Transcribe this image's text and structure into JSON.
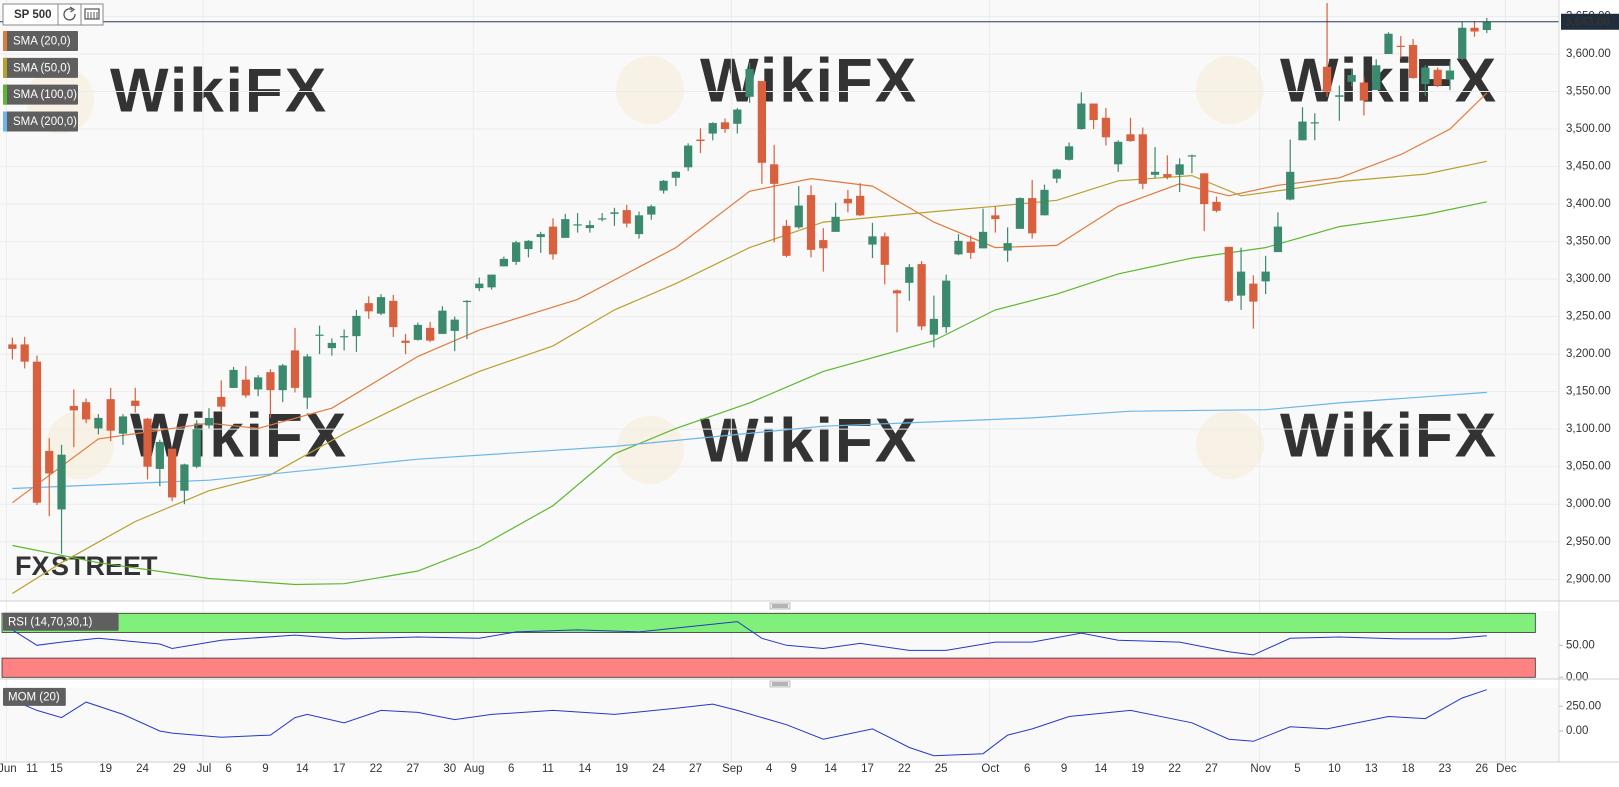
{
  "chart_data": [
    {
      "type": "candlestick",
      "title": "SP 500",
      "categories": [
        "Jun",
        null,
        "11",
        null,
        "15",
        null,
        null,
        null,
        "19",
        null,
        null,
        "24",
        null,
        null,
        "29",
        null,
        "Jul",
        null,
        "6",
        null,
        null,
        "9",
        null,
        null,
        "14",
        null,
        null,
        "17",
        null,
        null,
        "22",
        null,
        null,
        "27",
        null,
        null,
        "30",
        null,
        "Aug",
        null,
        null,
        "6",
        null,
        null,
        "11",
        null,
        null,
        "14",
        null,
        null,
        "19",
        null,
        null,
        "24",
        null,
        null,
        "27",
        null,
        null,
        "Sep",
        null,
        null,
        "4",
        null,
        "9",
        null,
        null,
        "14",
        null,
        null,
        "17",
        null,
        null,
        "22",
        null,
        null,
        "25",
        null,
        null,
        null,
        "Oct",
        null,
        null,
        "6",
        null,
        null,
        "9",
        null,
        null,
        "14",
        null,
        null,
        "19",
        null,
        null,
        "22",
        null,
        null,
        "27",
        null,
        null,
        null,
        "Nov",
        null,
        null,
        "5",
        null,
        null,
        "10",
        null,
        null,
        "13",
        null,
        null,
        "18",
        null,
        null,
        "23",
        null,
        null,
        "26",
        null,
        "Dec"
      ],
      "open": [
        3213,
        3213,
        3190,
        3071,
        2993,
        3131,
        3136,
        3101,
        3140,
        3094,
        3138,
        3114,
        3047,
        3074,
        3018,
        3050,
        3105,
        3143,
        3155,
        3166,
        3153,
        3176,
        3152,
        3205,
        3142,
        3225,
        3208,
        3224,
        3224,
        3268,
        3254,
        3271,
        3218,
        3219,
        3235,
        3227,
        3231,
        3270,
        3288,
        3289,
        3317,
        3323,
        3340,
        3356,
        3370,
        3355,
        3372,
        3368,
        3380,
        3387,
        3392,
        3360,
        3386,
        3418,
        3435,
        3449,
        3486,
        3494,
        3509,
        3507,
        3543,
        3564,
        3453,
        3371,
        3369,
        3412,
        3352,
        3363,
        3407,
        3411,
        3346,
        3357,
        3285,
        3295,
        3320,
        3226,
        3236,
        3333,
        3350,
        3341,
        3385,
        3338,
        3367,
        3408,
        3385,
        3434,
        3459,
        3500,
        3534,
        3515,
        3453,
        3493,
        3493,
        3439,
        3440,
        3439,
        3464,
        3441,
        3403,
        3343,
        3278,
        3294,
        3297,
        3336,
        3406,
        3485,
        3508,
        3583,
        3543,
        3563,
        3562,
        3552,
        3600,
        3611,
        3612,
        3560,
        3579,
        3566,
        3594,
        3635,
        3632,
        null,
        null
      ],
      "high": [
        3222,
        3223,
        3198,
        3088,
        3079,
        3153,
        3141,
        3120,
        3155,
        3120,
        3155,
        3115,
        3086,
        3074,
        3054,
        3112,
        3128,
        3165,
        3183,
        3184,
        3172,
        3180,
        3187,
        3235,
        3200,
        3238,
        3221,
        3233,
        3259,
        3277,
        3280,
        3279,
        3227,
        3242,
        3243,
        3264,
        3250,
        3272,
        3302,
        3306,
        3330,
        3351,
        3352,
        3363,
        3381,
        3387,
        3388,
        3378,
        3388,
        3395,
        3399,
        3390,
        3399,
        3432,
        3444,
        3481,
        3501,
        3509,
        3514,
        3528,
        3588,
        3564,
        3479,
        3379,
        3424,
        3425,
        3368,
        3402,
        3419,
        3428,
        3375,
        3362,
        3286,
        3320,
        3324,
        3278,
        3306,
        3360,
        3358,
        3394,
        3397,
        3369,
        3409,
        3432,
        3426,
        3447,
        3482,
        3549,
        3534,
        3528,
        3485,
        3515,
        3502,
        3476,
        3465,
        3461,
        3466,
        3441,
        3410,
        3343,
        3342,
        3305,
        3331,
        3389,
        3486,
        3529,
        3521,
        3668,
        3558,
        3581,
        3569,
        3593,
        3629,
        3624,
        3620,
        3585,
        3582,
        3590,
        3643,
        3644,
        3648,
        null,
        null
      ],
      "low": [
        3193,
        3181,
        2999,
        2984,
        2934,
        3076,
        3108,
        3093,
        3084,
        3079,
        3122,
        3033,
        3024,
        3004,
        3000,
        3048,
        3101,
        3125,
        3155,
        3142,
        3144,
        3115,
        3136,
        3149,
        3127,
        3200,
        3198,
        3205,
        3203,
        3247,
        3252,
        3223,
        3200,
        3218,
        3216,
        3227,
        3204,
        3220,
        3284,
        3286,
        3317,
        3319,
        3329,
        3335,
        3326,
        3355,
        3362,
        3362,
        3377,
        3371,
        3369,
        3354,
        3379,
        3414,
        3424,
        3444,
        3468,
        3485,
        3495,
        3494,
        3535,
        3427,
        3349,
        3329,
        3367,
        3329,
        3310,
        3363,
        3389,
        3384,
        3328,
        3293,
        3229,
        3271,
        3232,
        3209,
        3228,
        3332,
        3327,
        3341,
        3362,
        3323,
        3367,
        3354,
        3385,
        3428,
        3458,
        3499,
        3500,
        3478,
        3443,
        3483,
        3420,
        3435,
        3433,
        3416,
        3441,
        3364,
        3389,
        3269,
        3259,
        3234,
        3280,
        3336,
        3405,
        3485,
        3485,
        3543,
        3511,
        3557,
        3518,
        3552,
        3600,
        3594,
        3567,
        3544,
        3556,
        3552,
        3592,
        3623,
        3628,
        null,
        null
      ],
      "close": [
        3207,
        3190,
        3002,
        3041,
        3066,
        3125,
        3113,
        3115,
        3098,
        3117,
        3131,
        3050,
        3083,
        3009,
        3053,
        3100,
        3115,
        3130,
        3179,
        3145,
        3169,
        3152,
        3185,
        3155,
        3197,
        3226,
        3215,
        3224,
        3251,
        3257,
        3276,
        3236,
        3215,
        3239,
        3218,
        3258,
        3246,
        3271,
        3294,
        3306,
        3327,
        3349,
        3351,
        3360,
        3333,
        3380,
        3373,
        3372,
        3381,
        3389,
        3374,
        3385,
        3397,
        3431,
        3443,
        3478,
        3484,
        3508,
        3500,
        3526,
        3580,
        3455,
        3427,
        3331,
        3398,
        3339,
        3341,
        3383,
        3401,
        3385,
        3357,
        3319,
        3281,
        3316,
        3237,
        3247,
        3298,
        3351,
        3335,
        3363,
        3380,
        3348,
        3408,
        3361,
        3419,
        3446,
        3477,
        3534,
        3512,
        3489,
        3483,
        3484,
        3427,
        3443,
        3436,
        3453,
        3465,
        3400,
        3391,
        3271,
        3310,
        3270,
        3310,
        3370,
        3443,
        3510,
        3509,
        3550,
        3545,
        3572,
        3538,
        3585,
        3627,
        3610,
        3568,
        3582,
        3558,
        3578,
        3635,
        3630,
        3643,
        null,
        null
      ],
      "up_color": "#3b8a6d",
      "down_color": "#d9603f",
      "ylim": [
        2871,
        3672
      ],
      "yticks": [
        {
          "value": 2900,
          "label": "2,900.00"
        },
        {
          "value": 2950,
          "label": "2,950.00"
        },
        {
          "value": 3000,
          "label": "3,000.00"
        },
        {
          "value": 3050,
          "label": "3,050.00"
        },
        {
          "value": 3100,
          "label": "3,100.00"
        },
        {
          "value": 3150,
          "label": "3,150.00"
        },
        {
          "value": 3200,
          "label": "3,200.00"
        },
        {
          "value": 3250,
          "label": "3,250.00"
        },
        {
          "value": 3300,
          "label": "3,300.00"
        },
        {
          "value": 3350,
          "label": "3,350.00"
        },
        {
          "value": 3400,
          "label": "3,400.00"
        },
        {
          "value": 3450,
          "label": "3,450.00"
        },
        {
          "value": 3500,
          "label": "3,500.00"
        },
        {
          "value": 3550,
          "label": "3,550.00"
        },
        {
          "value": 3600,
          "label": "3,600.00"
        },
        {
          "value": 3650,
          "label": "3,650.00"
        }
      ],
      "last_price": {
        "value": 3643,
        "label": "3,643.00"
      },
      "grid": true,
      "overlays": [
        {
          "name": "SMA (20,0)",
          "color": "#e07b3c",
          "x": [
            0,
            7,
            16,
            20,
            26,
            33,
            38,
            46,
            54,
            60,
            65,
            70,
            75,
            80,
            85,
            90,
            95,
            99,
            103,
            108,
            113,
            117,
            120
          ],
          "values": [
            3002,
            3087,
            3108,
            3101,
            3128,
            3197,
            3232,
            3273,
            3342,
            3417,
            3434,
            3424,
            3376,
            3342,
            3345,
            3397,
            3427,
            3411,
            3425,
            3435,
            3466,
            3500,
            3548
          ]
        },
        {
          "name": "SMA (50,0)",
          "color": "#b8a030",
          "x": [
            0,
            4,
            10,
            16,
            21,
            27,
            33,
            38,
            44,
            49,
            54,
            60,
            66,
            75,
            80,
            85,
            90,
            96,
            100,
            104,
            108,
            115,
            120
          ],
          "values": [
            2881,
            2922,
            2977,
            3018,
            3039,
            3094,
            3142,
            3177,
            3211,
            3259,
            3294,
            3342,
            3376,
            3390,
            3397,
            3405,
            3431,
            3438,
            3411,
            3420,
            3430,
            3440,
            3457
          ]
        },
        {
          "name": "SMA (100,0)",
          "color": "#5cb830",
          "x": [
            0,
            7,
            16,
            23,
            27,
            33,
            38,
            44,
            49,
            54,
            60,
            66,
            75,
            80,
            85,
            90,
            96,
            102,
            108,
            115,
            120
          ],
          "values": [
            2945,
            2922,
            2901,
            2893,
            2894,
            2911,
            2943,
            2998,
            3067,
            3101,
            3135,
            3177,
            3218,
            3259,
            3280,
            3307,
            3328,
            3342,
            3370,
            3386,
            3403
          ]
        },
        {
          "name": "SMA (200,0)",
          "color": "#6bb6ea",
          "x": [
            0,
            16,
            33,
            49,
            66,
            83,
            91,
            102,
            108,
            120
          ],
          "values": [
            3021,
            3032,
            3060,
            3077,
            3104,
            3115,
            3124,
            3126,
            3135,
            3149
          ]
        }
      ]
    },
    {
      "type": "line",
      "title": "RSI (14,70,30,1)",
      "color": "#2438c8",
      "x": [
        0,
        2,
        4,
        7,
        12,
        13,
        17,
        23,
        27,
        33,
        38,
        41,
        46,
        51,
        56,
        59,
        61,
        63,
        66,
        69,
        73,
        76,
        80,
        83,
        87,
        90,
        95,
        99,
        101,
        104,
        108,
        113,
        117,
        120
      ],
      "values": [
        74,
        50,
        55,
        61,
        52,
        45,
        58,
        66,
        60,
        63,
        61,
        71,
        74,
        71,
        81,
        87,
        61,
        50,
        45,
        53,
        42,
        42,
        55,
        55,
        69,
        58,
        55,
        40,
        35,
        61,
        63,
        60,
        60,
        65
      ],
      "ylim": [
        0,
        100
      ],
      "yticks": [
        {
          "value": 0,
          "label": "0.00"
        },
        {
          "value": 50,
          "label": "50.00"
        }
      ],
      "bands": [
        {
          "from": 70,
          "to": 100,
          "color": "#80f07a"
        },
        {
          "from": 0,
          "to": 30,
          "color": "#ff8282"
        }
      ]
    },
    {
      "type": "line",
      "title": "MOM (20)",
      "color": "#2438c8",
      "x": [
        0,
        2,
        4,
        6,
        9,
        12,
        13,
        17,
        21,
        23,
        24,
        27,
        30,
        33,
        36,
        39,
        44,
        49,
        54,
        57,
        59,
        63,
        66,
        70,
        73,
        75,
        79,
        81,
        83,
        86,
        91,
        96,
        99,
        101,
        104,
        107,
        112,
        115,
        118,
        120
      ],
      "values": [
        313,
        208,
        135,
        292,
        167,
        0,
        -21,
        -63,
        -42,
        135,
        167,
        83,
        208,
        188,
        115,
        167,
        208,
        167,
        229,
        271,
        208,
        63,
        -83,
        21,
        -167,
        -250,
        -229,
        -42,
        21,
        146,
        208,
        83,
        -83,
        -104,
        42,
        21,
        146,
        125,
        333,
        417
      ],
      "ylim": [
        -300,
        430
      ],
      "yticks": [
        {
          "value": 0,
          "label": "0.00"
        },
        {
          "value": 250,
          "label": "250.00"
        }
      ]
    }
  ],
  "watermark": "WikiFX",
  "logo_fx": "FX",
  "logo_street": "STREET"
}
